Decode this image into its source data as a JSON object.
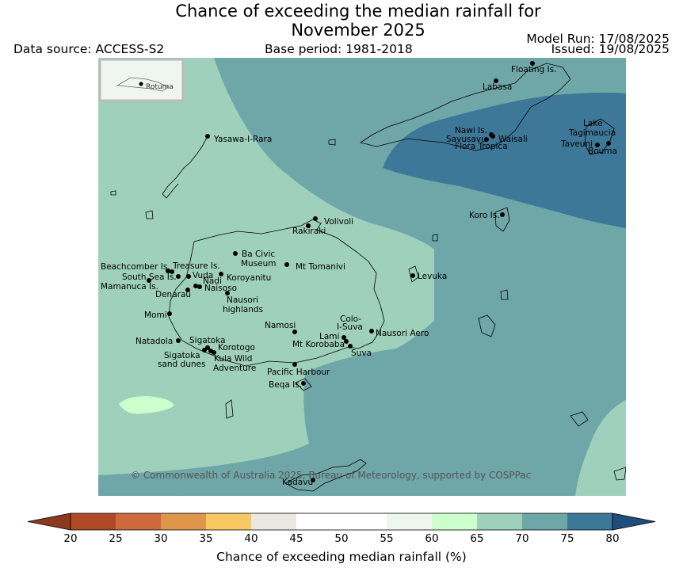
{
  "title_line1": "Chance of exceeding the median rainfall for",
  "title_line2": "November 2025",
  "data_source": "Data source: ACCESS-S2",
  "base_period": "Base period: 1981-2018",
  "model_run": "Model Run: 17/08/2025",
  "issued": "Issued: 19/08/2025",
  "inset_label": "Rotuma",
  "copyright": "© Commonwealth of Australia 2025, Bureau of Meteorology, supported by COSPPac",
  "places": [
    {
      "name": "Floating Is."
    },
    {
      "name": "Labasa"
    },
    {
      "name": "Yasawa-I-Rara"
    },
    {
      "name": "Nawi Is."
    },
    {
      "name": "Savusavu"
    },
    {
      "name": "Waisali"
    },
    {
      "name": "Flora Tropica"
    },
    {
      "name": "Lake"
    },
    {
      "name": "Tagimaucia"
    },
    {
      "name": "Taveuni"
    },
    {
      "name": "Bouma"
    },
    {
      "name": "Koro Is."
    },
    {
      "name": "Volivoli"
    },
    {
      "name": "Rakiraki"
    },
    {
      "name": "Beachcomber Is."
    },
    {
      "name": "Treasure Is."
    },
    {
      "name": "Vuda"
    },
    {
      "name": "South Sea Is."
    },
    {
      "name": "Nadi"
    },
    {
      "name": "Mamanuca Is."
    },
    {
      "name": "Denarau"
    },
    {
      "name": "Naisoso"
    },
    {
      "name": "Ba Civic"
    },
    {
      "name": "Museum"
    },
    {
      "name": "Mt Tomanivi"
    },
    {
      "name": "Koroyanitu"
    },
    {
      "name": "Nausori"
    },
    {
      "name": "highlands"
    },
    {
      "name": "Levuka"
    },
    {
      "name": "Momi"
    },
    {
      "name": "Namosi"
    },
    {
      "name": "Colo-"
    },
    {
      "name": "I-Suva"
    },
    {
      "name": "Nausori Aero"
    },
    {
      "name": "Lami"
    },
    {
      "name": "Mt Korobaba"
    },
    {
      "name": "Suva"
    },
    {
      "name": "Natadola"
    },
    {
      "name": "Sigatoka"
    },
    {
      "name": "Korotogo"
    },
    {
      "name": "Sigatoka"
    },
    {
      "name": "sand dunes"
    },
    {
      "name": "Kula Wild"
    },
    {
      "name": "Adventure"
    },
    {
      "name": "Pacific Harbour"
    },
    {
      "name": "Beqa Is."
    },
    {
      "name": "Kadavu"
    }
  ],
  "colorbar": {
    "label": "Chance of exceeding median rainfall (%)",
    "ticks": [
      "20",
      "25",
      "30",
      "35",
      "40",
      "45",
      "50",
      "55",
      "60",
      "65",
      "70",
      "75",
      "80"
    ],
    "colors": [
      "#b04a26",
      "#cc6a3b",
      "#e0964a",
      "#f8c862",
      "#ebe8e4",
      "#ffffff",
      "#ffffff",
      "#edf7ed",
      "#ccffcc",
      "#9ed0bb",
      "#6fa6a8",
      "#3e7898"
    ],
    "under_color": "#8c3a1f",
    "over_color": "#1f4e7a"
  },
  "map_colors": {
    "c65_70": "#9ed0bb",
    "c70_75": "#6fa6a8",
    "c75_80": "#3e7898",
    "c60_65": "#ccffcc"
  }
}
